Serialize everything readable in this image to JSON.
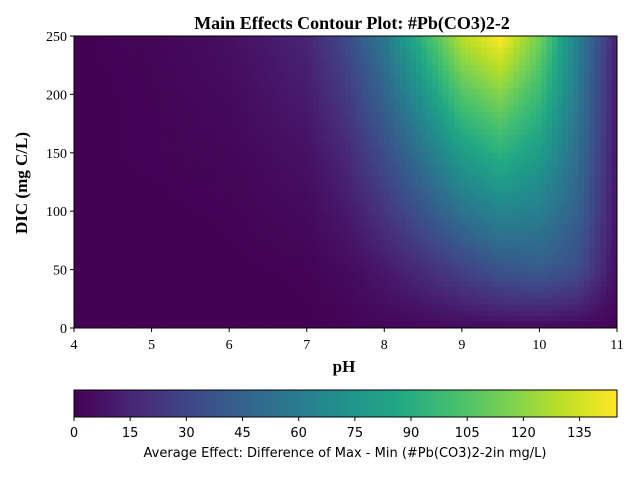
{
  "chart_data": {
    "type": "heatmap",
    "title": "Main Effects Contour Plot: #Pb(CO3)2-2",
    "xlabel": "pH",
    "ylabel": "DIC (mg C/L)",
    "xlim": [
      4,
      11
    ],
    "ylim": [
      0,
      250
    ],
    "x_ticks": [
      "4",
      "5",
      "6",
      "7",
      "8",
      "9",
      "10",
      "11"
    ],
    "y_ticks": [
      "0",
      "50",
      "100",
      "150",
      "200",
      "250"
    ],
    "colormap": "viridis",
    "colorbar": {
      "orientation": "horizontal",
      "location": "bottom",
      "label": "Average Effect: Difference of Max - Min (#Pb(CO3)2-2in mg/L)",
      "ticks": [
        "0",
        "15",
        "30",
        "45",
        "60",
        "75",
        "90",
        "105",
        "120",
        "135"
      ],
      "range": [
        0,
        145
      ]
    },
    "peak": {
      "pH": 9.55,
      "DIC": 250,
      "value": 145
    },
    "x": [
      4,
      5,
      6,
      7,
      7.5,
      8,
      8.5,
      9,
      9.5,
      10,
      10.5,
      11
    ],
    "y": [
      0,
      50,
      100,
      150,
      200,
      250
    ],
    "z": [
      [
        0,
        0,
        0,
        0,
        1,
        2,
        3,
        4,
        4,
        4,
        3,
        1
      ],
      [
        0,
        0,
        0,
        1,
        4,
        10,
        18,
        28,
        38,
        42,
        34,
        6
      ],
      [
        0,
        0,
        1,
        4,
        10,
        22,
        38,
        55,
        66,
        62,
        45,
        8
      ],
      [
        0,
        1,
        2,
        7,
        16,
        34,
        56,
        80,
        92,
        80,
        52,
        9
      ],
      [
        0,
        1,
        4,
        11,
        24,
        46,
        75,
        105,
        118,
        98,
        58,
        10
      ],
      [
        0,
        2,
        6,
        15,
        32,
        58,
        95,
        130,
        145,
        115,
        62,
        12
      ]
    ]
  }
}
